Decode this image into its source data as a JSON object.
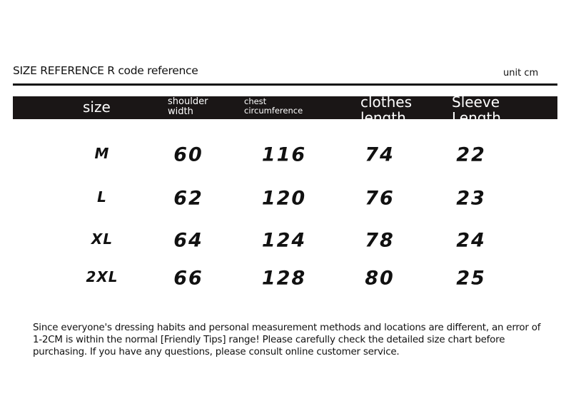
{
  "title": "SIZE REFERENCE R code reference",
  "unit": "unit cm",
  "headers": {
    "size": "size",
    "shoulder": [
      "shoulder",
      "width"
    ],
    "chest": [
      "chest",
      "circumference"
    ],
    "length": [
      "clothes",
      "length"
    ],
    "sleeve": [
      "Sleeve",
      "Length"
    ]
  },
  "rows": [
    {
      "size": "M",
      "shoulder": "60",
      "chest": "116",
      "length": "74",
      "sleeve": "22"
    },
    {
      "size": "L",
      "shoulder": "62",
      "chest": "120",
      "length": "76",
      "sleeve": "23"
    },
    {
      "size": "XL",
      "shoulder": "64",
      "chest": "124",
      "length": "78",
      "sleeve": "24"
    },
    {
      "size": "2XL",
      "shoulder": "66",
      "chest": "128",
      "length": "80",
      "sleeve": "25"
    }
  ],
  "note": "Since everyone's dressing habits and personal measurement methods and locations are different, an error of 1-2CM is within the normal [Friendly Tips] range! Please carefully check the detailed size chart before purchasing. If you have any questions, please consult online customer service."
}
